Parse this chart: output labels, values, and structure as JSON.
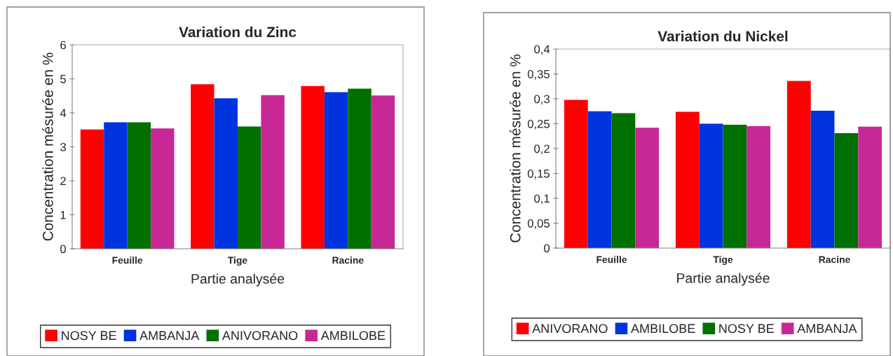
{
  "chart_data": [
    {
      "type": "bar",
      "title": "Variation du Zinc",
      "xlabel": "Partie analysée",
      "ylabel": "Concentration mésurée en %",
      "categories": [
        "Feuille",
        "Tige",
        "Racine"
      ],
      "series": [
        {
          "name": "NOSY BE",
          "color": "#ff0000",
          "values": [
            3.51,
            4.84,
            4.79
          ]
        },
        {
          "name": "AMBANJA",
          "color": "#0033e0",
          "values": [
            3.72,
            4.43,
            4.61
          ]
        },
        {
          "name": "ANIVORANO",
          "color": "#007000",
          "values": [
            3.72,
            3.6,
            4.71
          ]
        },
        {
          "name": "AMBILOBE",
          "color": "#c82896",
          "values": [
            3.54,
            4.52,
            4.51
          ]
        }
      ],
      "ylim": [
        0,
        6
      ],
      "yticks": [
        0,
        1,
        2,
        3,
        4,
        5,
        6
      ],
      "grid": false,
      "legend": "bottom"
    },
    {
      "type": "bar",
      "title": "Variation du Nickel",
      "xlabel": "Partie analysée",
      "ylabel": "Concentration mésurée en %",
      "categories": [
        "Feuille",
        "Tige",
        "Racine"
      ],
      "series": [
        {
          "name": "ANIVORANO",
          "color": "#ff0000",
          "values": [
            0.298,
            0.274,
            0.336
          ]
        },
        {
          "name": "AMBILOBE",
          "color": "#0033e0",
          "values": [
            0.275,
            0.25,
            0.276
          ]
        },
        {
          "name": "NOSY BE",
          "color": "#007000",
          "values": [
            0.271,
            0.248,
            0.231
          ]
        },
        {
          "name": "AMBANJA",
          "color": "#c82896",
          "values": [
            0.242,
            0.245,
            0.244
          ]
        }
      ],
      "ylim": [
        0,
        0.4
      ],
      "yticks": [
        0,
        {
          "value": 0.05,
          "label": "0,05"
        },
        {
          "value": 0.1,
          "label": "0,1"
        },
        {
          "value": 0.15,
          "label": "0,15"
        },
        {
          "value": 0.2,
          "label": "0,2"
        },
        {
          "value": 0.25,
          "label": "0,25"
        },
        {
          "value": 0.3,
          "label": "0,3"
        },
        {
          "value": 0.35,
          "label": "0,35"
        },
        {
          "value": 0.4,
          "label": "0,4"
        }
      ],
      "grid": false,
      "legend": "bottom"
    }
  ]
}
